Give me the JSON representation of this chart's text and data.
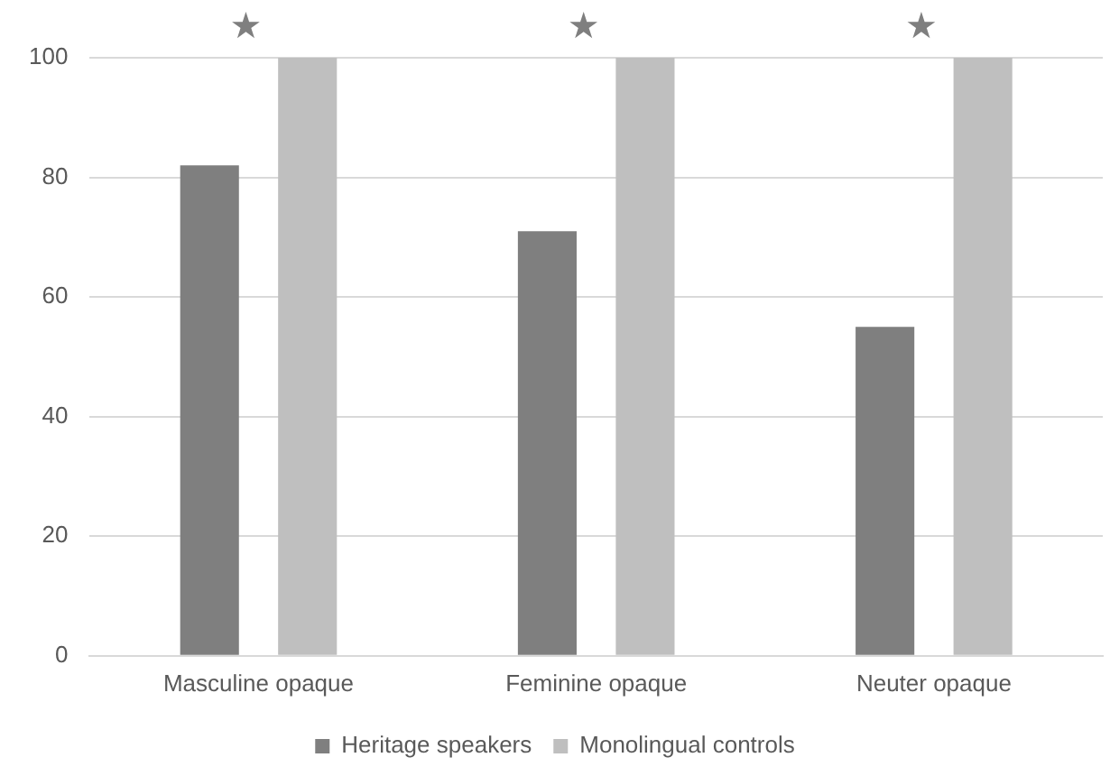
{
  "chart_data": {
    "type": "bar",
    "categories": [
      "Masculine opaque",
      "Feminine opaque",
      "Neuter opaque"
    ],
    "series": [
      {
        "name": "Heritage speakers",
        "color": "#7f7f7f",
        "values": [
          82,
          71,
          55
        ]
      },
      {
        "name": "Monolingual controls",
        "color": "#bfbfbf",
        "values": [
          100,
          100,
          100
        ]
      }
    ],
    "ylim": [
      0,
      100
    ],
    "yticks": [
      0,
      20,
      40,
      60,
      80,
      100
    ],
    "grid": "y",
    "legend": "bottom",
    "annotations": [
      "★",
      "★",
      "★"
    ]
  }
}
